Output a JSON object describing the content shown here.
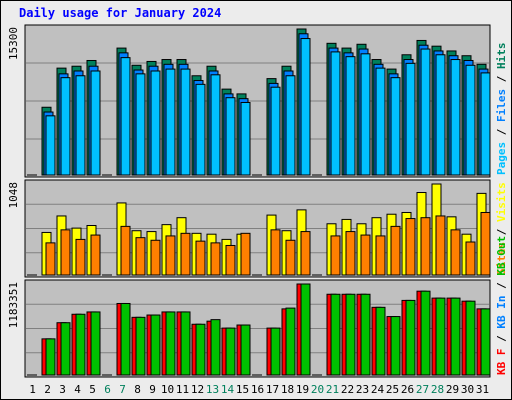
{
  "chart_data": {
    "type": "bar",
    "title": "Daily usage for January 2024",
    "categories": [
      "1",
      "2",
      "3",
      "4",
      "5",
      "6",
      "7",
      "8",
      "9",
      "10",
      "11",
      "12",
      "13",
      "14",
      "15",
      "16",
      "17",
      "18",
      "19",
      "20",
      "21",
      "22",
      "23",
      "24",
      "25",
      "26",
      "27",
      "28",
      "29",
      "30",
      "31"
    ],
    "weekend_days": [
      "6",
      "7",
      "13",
      "14",
      "20",
      "21",
      "27",
      "28"
    ],
    "panels": [
      {
        "id": "hits-files-pages",
        "max_label": "15300",
        "ymax": 15300,
        "legend": [
          {
            "text": "Pages",
            "color": "#00c0ff"
          },
          {
            "text": " / ",
            "color": "#000000"
          },
          {
            "text": "Files",
            "color": "#0080ff"
          },
          {
            "text": " / ",
            "color": "#000000"
          },
          {
            "text": "Hits",
            "color": "#00805c"
          }
        ],
        "series": [
          {
            "name": "Hits",
            "color": "#00805c",
            "values": [
              0,
              7100,
              11200,
              11400,
              12000,
              0,
              13300,
              11500,
              11900,
              12100,
              12100,
              10400,
              11400,
              9000,
              8500,
              0,
              10100,
              11400,
              15300,
              0,
              13800,
              13300,
              13700,
              12100,
              11100,
              12600,
              14100,
              13500,
              13000,
              12500,
              11600
            ]
          },
          {
            "name": "Files",
            "color": "#0080ff",
            "values": [
              0,
              6600,
              10600,
              10900,
              11400,
              0,
              12800,
              11000,
              11400,
              11600,
              11600,
              9900,
              10900,
              8500,
              8000,
              0,
              9600,
              10900,
              14800,
              0,
              13300,
              12800,
              13200,
              11600,
              10600,
              12100,
              13600,
              13000,
              12500,
              12000,
              11100
            ]
          },
          {
            "name": "Pages",
            "color": "#00c0ff",
            "values": [
              0,
              6200,
              10200,
              10400,
              10900,
              0,
              12300,
              10600,
              10900,
              11100,
              11100,
              9500,
              10500,
              8100,
              7600,
              0,
              9200,
              10400,
              14300,
              0,
              12900,
              12400,
              12700,
              11200,
              10200,
              11700,
              13200,
              12600,
              12100,
              11500,
              10700
            ]
          }
        ]
      },
      {
        "id": "visits-sites",
        "max_label": "1048",
        "ymax": 1048,
        "legend": [
          {
            "text": "Sites",
            "color": "#ff8000"
          },
          {
            "text": " / ",
            "color": "#000000"
          },
          {
            "text": "Visits",
            "color": "#ffff00"
          }
        ],
        "series": [
          {
            "name": "Visits",
            "color": "#ffff00",
            "values": [
              0,
              490,
              680,
              540,
              570,
              0,
              830,
              510,
              500,
              580,
              660,
              480,
              470,
              410,
              470,
              0,
              690,
              510,
              750,
              0,
              590,
              640,
              590,
              660,
              700,
              720,
              950,
              1048,
              670,
              470,
              940
            ]
          },
          {
            "name": "Sites",
            "color": "#ff8000",
            "values": [
              0,
              370,
              520,
              410,
              460,
              0,
              560,
              430,
              400,
              450,
              480,
              390,
              370,
              340,
              480,
              0,
              520,
              400,
              500,
              0,
              450,
              500,
              460,
              450,
              560,
              650,
              660,
              680,
              520,
              380,
              720
            ]
          }
        ]
      },
      {
        "id": "kbytes",
        "max_label": "1183351",
        "ymax": 1183351,
        "legend": [
          {
            "text": "KB F",
            "color": "#ff0000"
          },
          {
            "text": " / ",
            "color": "#000000"
          },
          {
            "text": "KB In",
            "color": "#0080ff"
          },
          {
            "text": " / ",
            "color": "#000000"
          },
          {
            "text": "KB Out",
            "color": "#00c000"
          }
        ],
        "series": [
          {
            "name": "KB F",
            "color": "#ff0000",
            "values": [
              0,
              470000,
              680000,
              790000,
              820000,
              0,
              930000,
              750000,
              780000,
              820000,
              820000,
              660000,
              700000,
              610000,
              650000,
              0,
              610000,
              860000,
              1183351,
              0,
              1050000,
              1050000,
              1050000,
              880000,
              760000,
              970000,
              1090000,
              1000000,
              1000000,
              960000,
              860000
            ]
          },
          {
            "name": "KB Out",
            "color": "#00c000",
            "values": [
              0,
              470000,
              680000,
              790000,
              820000,
              0,
              930000,
              750000,
              780000,
              820000,
              820000,
              660000,
              720000,
              610000,
              650000,
              0,
              610000,
              870000,
              1183351,
              0,
              1050000,
              1050000,
              1050000,
              880000,
              760000,
              970000,
              1090000,
              1000000,
              1000000,
              960000,
              860000
            ]
          }
        ]
      }
    ]
  }
}
